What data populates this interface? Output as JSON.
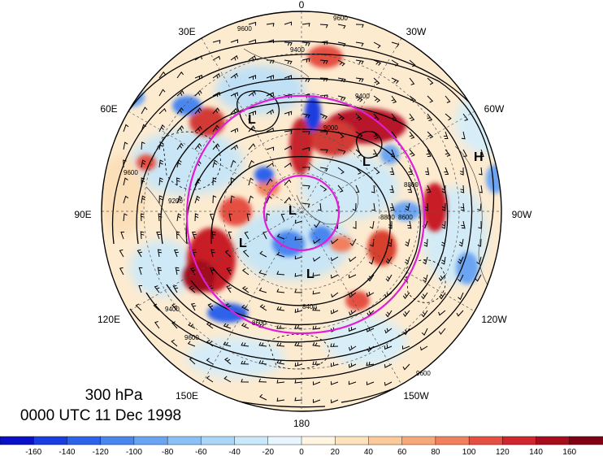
{
  "caption": {
    "level": "300 hPa",
    "time": "0000 UTC 11 Dec 1998"
  },
  "longitude_labels": [
    "0",
    "30W",
    "60W",
    "90W",
    "120W",
    "150W",
    "180",
    "150E",
    "120E",
    "90E",
    "60E",
    "30E"
  ],
  "contour_labels": [
    "9600",
    "9600",
    "9400",
    "9400",
    "9000",
    "8600",
    "8800",
    "9200",
    "9600",
    "8400",
    "8600",
    "9400",
    "9600",
    "9600",
    "8800"
  ],
  "pressure_systems": [
    "H",
    "L",
    "L",
    "L",
    "L",
    "L"
  ],
  "colorbar": {
    "ticks": [
      "-160",
      "-140",
      "-120",
      "-100",
      "-80",
      "-60",
      "-40",
      "-20",
      "0",
      "20",
      "40",
      "60",
      "80",
      "100",
      "120",
      "140",
      "160"
    ],
    "colors": [
      "#0a10c8",
      "#1a3ce0",
      "#2d62ea",
      "#4a86ef",
      "#6aa4f2",
      "#8cc0f5",
      "#aad6f7",
      "#c9e9fa",
      "#e6f6fc",
      "#fff5e0",
      "#fde3bd",
      "#fbc99a",
      "#f7a879",
      "#f0805e",
      "#e55043",
      "#d0262e",
      "#a80d1e",
      "#800014"
    ]
  }
}
